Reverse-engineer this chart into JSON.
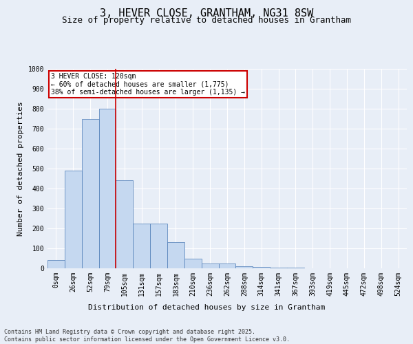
{
  "title": "3, HEVER CLOSE, GRANTHAM, NG31 8SW",
  "subtitle": "Size of property relative to detached houses in Grantham",
  "xlabel": "Distribution of detached houses by size in Grantham",
  "ylabel": "Number of detached properties",
  "categories": [
    "0sqm",
    "26sqm",
    "52sqm",
    "79sqm",
    "105sqm",
    "131sqm",
    "157sqm",
    "183sqm",
    "210sqm",
    "236sqm",
    "262sqm",
    "288sqm",
    "314sqm",
    "341sqm",
    "367sqm",
    "393sqm",
    "419sqm",
    "445sqm",
    "472sqm",
    "498sqm",
    "524sqm"
  ],
  "values": [
    40,
    490,
    750,
    800,
    440,
    225,
    225,
    130,
    50,
    25,
    25,
    12,
    8,
    5,
    3,
    1,
    0,
    1,
    0,
    0,
    0
  ],
  "bar_color": "#c5d8f0",
  "bar_edge_color": "#4a7ab5",
  "bar_width": 1.0,
  "red_line_x": 3.5,
  "marker_label": "3 HEVER CLOSE: 120sqm",
  "annotation_line1": "← 60% of detached houses are smaller (1,775)",
  "annotation_line2": "38% of semi-detached houses are larger (1,135) →",
  "annotation_box_color": "#ffffff",
  "annotation_box_edge": "#cc0000",
  "red_line_color": "#cc0000",
  "ylim": [
    0,
    1000
  ],
  "yticks": [
    0,
    100,
    200,
    300,
    400,
    500,
    600,
    700,
    800,
    900,
    1000
  ],
  "background_color": "#e8eef7",
  "plot_background": "#e8eef7",
  "grid_color": "#ffffff",
  "footer_line1": "Contains HM Land Registry data © Crown copyright and database right 2025.",
  "footer_line2": "Contains public sector information licensed under the Open Government Licence v3.0.",
  "title_fontsize": 11,
  "subtitle_fontsize": 9,
  "ylabel_fontsize": 8,
  "xlabel_fontsize": 8,
  "tick_fontsize": 7,
  "annotation_fontsize": 7,
  "footer_fontsize": 6
}
